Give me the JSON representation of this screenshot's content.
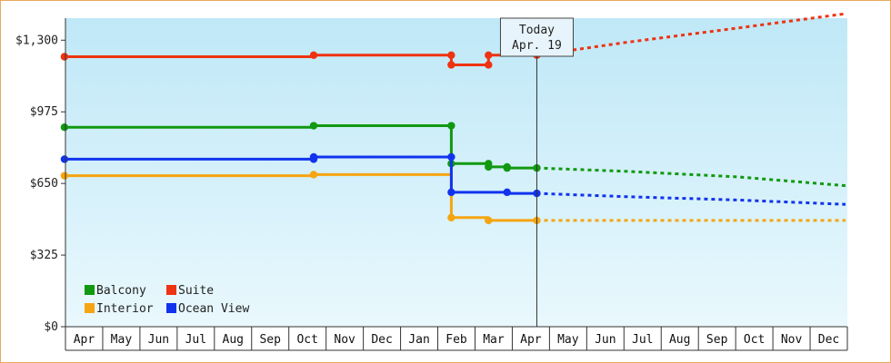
{
  "chart_data": {
    "type": "line",
    "title": "",
    "xlabel": "",
    "ylabel": "",
    "ylim": [
      0,
      1400
    ],
    "y_ticks": [
      {
        "value": 0,
        "label": "$0"
      },
      {
        "value": 325,
        "label": "$325"
      },
      {
        "value": 650,
        "label": "$650"
      },
      {
        "value": 975,
        "label": "$975"
      },
      {
        "value": 1300,
        "label": "$1,300"
      }
    ],
    "x_unit": "months since the first April shown",
    "xlim": [
      0,
      20.9
    ],
    "months": [
      "Apr",
      "May",
      "Jun",
      "Jul",
      "Aug",
      "Sep",
      "Oct",
      "Nov",
      "Dec",
      "Jan",
      "Feb",
      "Mar",
      "Apr",
      "May",
      "Jun",
      "Jul",
      "Aug",
      "Sep",
      "Oct",
      "Nov",
      "Dec"
    ],
    "today": {
      "title": "Today",
      "date": "Apr. 19",
      "x": 12.6
    },
    "grid": false,
    "background_gradient": [
      "#bfe8f7",
      "#e9f8fd"
    ],
    "legend_placement": "bottom-left",
    "series": [
      {
        "name": "Balcony",
        "color": "#119911",
        "actual": [
          [
            -0.1,
            905
          ],
          [
            6.6,
            905
          ],
          [
            6.6,
            912
          ],
          [
            10.3,
            912
          ],
          [
            10.3,
            740
          ],
          [
            11.3,
            740
          ],
          [
            11.3,
            725
          ],
          [
            11.8,
            725
          ],
          [
            11.8,
            720
          ],
          [
            12.6,
            720
          ]
        ],
        "points": [
          [
            -0.1,
            905
          ],
          [
            6.6,
            912
          ],
          [
            10.3,
            912
          ],
          [
            10.3,
            740
          ],
          [
            11.3,
            740
          ],
          [
            11.3,
            725
          ],
          [
            11.8,
            725
          ],
          [
            11.8,
            720
          ],
          [
            12.6,
            720
          ]
        ],
        "forecast": [
          [
            12.6,
            720
          ],
          [
            15,
            705
          ],
          [
            18,
            680
          ],
          [
            20.9,
            640
          ]
        ]
      },
      {
        "name": "Suite",
        "color": "#ee3311",
        "actual": [
          [
            -0.1,
            1225
          ],
          [
            6.6,
            1225
          ],
          [
            6.6,
            1232
          ],
          [
            10.3,
            1232
          ],
          [
            10.3,
            1188
          ],
          [
            11.3,
            1188
          ],
          [
            11.3,
            1232
          ],
          [
            12.6,
            1232
          ]
        ],
        "points": [
          [
            -0.1,
            1225
          ],
          [
            6.6,
            1232
          ],
          [
            10.3,
            1232
          ],
          [
            10.3,
            1188
          ],
          [
            11.3,
            1188
          ],
          [
            11.3,
            1232
          ],
          [
            12.6,
            1232
          ]
        ],
        "forecast": [
          [
            12.6,
            1232
          ],
          [
            15,
            1290
          ],
          [
            18,
            1355
          ],
          [
            20.9,
            1420
          ]
        ]
      },
      {
        "name": "Interior",
        "color": "#f5a511",
        "actual": [
          [
            -0.1,
            685
          ],
          [
            6.6,
            685
          ],
          [
            6.6,
            690
          ],
          [
            10.3,
            690
          ],
          [
            10.3,
            495
          ],
          [
            11.3,
            495
          ],
          [
            11.3,
            482
          ],
          [
            12.6,
            482
          ]
        ],
        "points": [
          [
            -0.1,
            685
          ],
          [
            6.6,
            690
          ],
          [
            10.3,
            495
          ],
          [
            11.3,
            482
          ],
          [
            12.6,
            482
          ]
        ],
        "forecast": [
          [
            12.6,
            482
          ],
          [
            20.9,
            482
          ]
        ]
      },
      {
        "name": "Ocean View",
        "color": "#1133ee",
        "actual": [
          [
            -0.1,
            760
          ],
          [
            6.6,
            760
          ],
          [
            6.6,
            770
          ],
          [
            10.3,
            770
          ],
          [
            10.3,
            610
          ],
          [
            11.8,
            610
          ],
          [
            11.8,
            605
          ],
          [
            12.6,
            605
          ]
        ],
        "points": [
          [
            -0.1,
            760
          ],
          [
            6.6,
            760
          ],
          [
            6.6,
            770
          ],
          [
            10.3,
            770
          ],
          [
            10.3,
            610
          ],
          [
            11.8,
            610
          ],
          [
            12.6,
            605
          ]
        ],
        "forecast": [
          [
            12.6,
            605
          ],
          [
            15,
            590
          ],
          [
            18,
            575
          ],
          [
            20.9,
            555
          ]
        ]
      }
    ]
  }
}
